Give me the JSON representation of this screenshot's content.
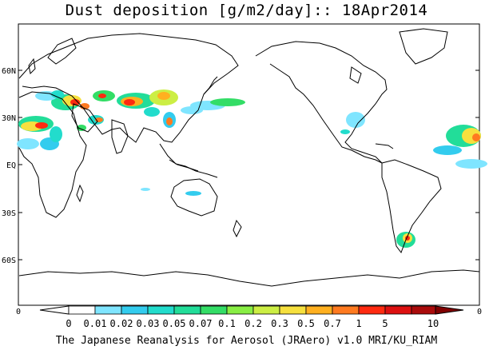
{
  "title": "Dust deposition [g/m2/day]:: 18Apr2014",
  "footer": "The Japanese Reanalysis for Aerosol (JRAero) v1.0 MRI/KU_RIAM",
  "lat_labels": [
    "60N",
    "30N",
    "EQ",
    "30S",
    "60S"
  ],
  "lon_edge_labels": [
    "0",
    "0"
  ],
  "colorbar": {
    "labels": [
      "0",
      "0.01",
      "0.02",
      "0.03",
      "0.05",
      "0.07",
      "0.1",
      "0.2",
      "0.3",
      "0.5",
      "0.7",
      "1",
      "5",
      "10"
    ],
    "colors": [
      "#ffffff",
      "#7fe5ff",
      "#33ccee",
      "#22dccc",
      "#22dd99",
      "#33dd66",
      "#88ee44",
      "#ccee44",
      "#f6e03e",
      "#ffb020",
      "#ff7a20",
      "#ff2a10",
      "#dd1010",
      "#aa0b0b",
      "#800000"
    ]
  },
  "colors": {
    "coast": "#000000",
    "background": "#ffffff"
  }
}
